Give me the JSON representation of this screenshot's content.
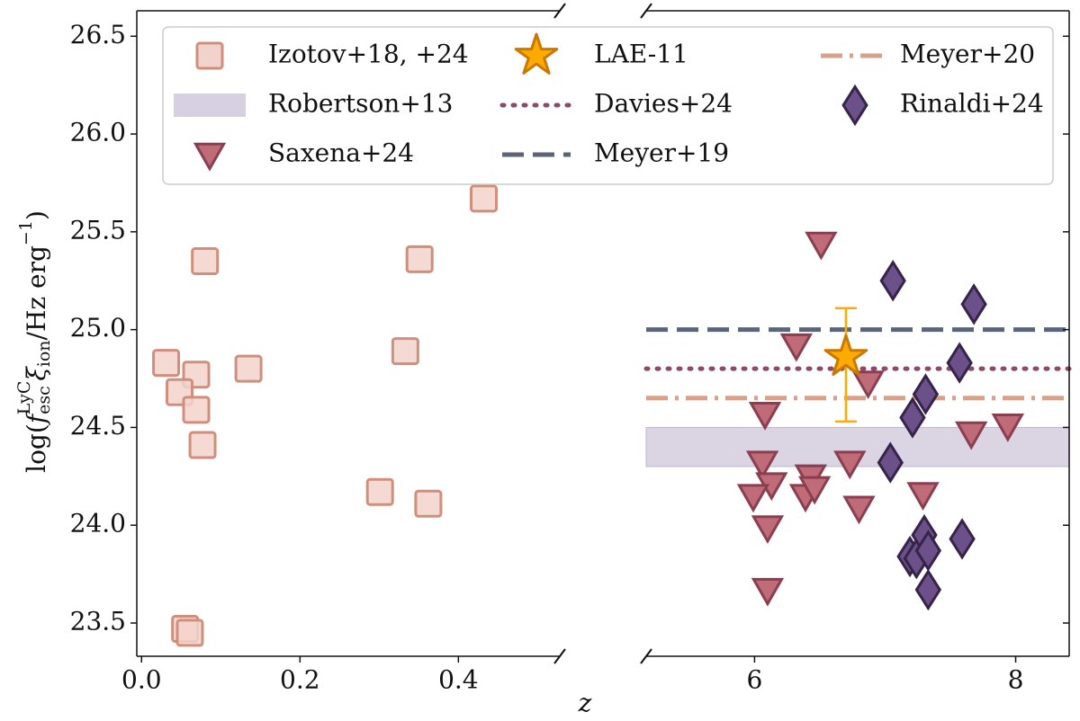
{
  "chart_data": [
    {
      "type": "scatter",
      "ylabel": [
        "log(",
        "f",
        "esc",
        "LyC",
        "ξ",
        "ion",
        "/Hz erg",
        "−1",
        ")"
      ],
      "xlabel": "z",
      "xlim": [
        -0.006,
        0.528
      ],
      "xticks": [
        {
          "value": 0,
          "label": "0.0"
        },
        0.2,
        0.4
      ],
      "ylim": [
        23.33,
        26.63
      ],
      "yticks": [
        23.5,
        {
          "value": 24,
          "label": "24.0"
        },
        24.5,
        {
          "value": 25,
          "label": "25.0"
        },
        25.5,
        {
          "value": 26,
          "label": "26.0"
        },
        26.5
      ],
      "series": [
        {
          "name": "Izotov+18, +24",
          "marker": "s",
          "color": "#f2d3cb",
          "edgecolor": "#d08f7c",
          "x": [
            0.031,
            0.08,
            0.069,
            0.048,
            0.069,
            0.077,
            0.135,
            0.333,
            0.351,
            0.432,
            0.301,
            0.362,
            0.055,
            0.061
          ],
          "values": [
            24.83,
            25.35,
            24.77,
            24.68,
            24.59,
            24.41,
            24.8,
            24.89,
            25.36,
            25.67,
            24.17,
            24.11,
            23.47,
            23.45
          ]
        }
      ]
    },
    {
      "type": "scatter",
      "xlim": [
        5.17,
        8.41
      ],
      "xticks": [
        6,
        8
      ],
      "ylim": [
        23.33,
        26.63
      ],
      "series": [
        {
          "name": "Saxena+24",
          "marker": "v",
          "color": "#c06b78",
          "edgecolor": "#8a3f50",
          "x": [
            6.51,
            6.32,
            6.87,
            6.08,
            6.06,
            6.13,
            5.99,
            6.43,
            6.39,
            6.46,
            6.73,
            6.8,
            6.1,
            6.1,
            7.29,
            7.66,
            7.94
          ],
          "values": [
            25.44,
            24.92,
            24.73,
            24.57,
            24.32,
            24.21,
            24.15,
            24.25,
            24.15,
            24.19,
            24.32,
            24.09,
            23.99,
            23.67,
            24.16,
            24.47,
            24.51
          ]
        },
        {
          "name": "Rinaldi+24",
          "marker": "D",
          "color": "#6b5089",
          "edgecolor": "#352448",
          "x": [
            7.06,
            7.68,
            7.57,
            7.31,
            7.21,
            7.04,
            7.19,
            7.24,
            7.3,
            7.33,
            7.59,
            7.33
          ],
          "values": [
            25.25,
            25.13,
            24.83,
            24.67,
            24.55,
            24.32,
            23.84,
            23.83,
            23.95,
            23.87,
            23.93,
            23.67
          ]
        },
        {
          "name": "LAE-11",
          "marker": "*",
          "color": "#ffaa00",
          "edgecolor": "#c97800",
          "x": [
            6.7
          ],
          "values": [
            24.86
          ],
          "yerr_low": [
            0.33
          ],
          "yerr_high": [
            0.25
          ]
        }
      ],
      "bands": [
        {
          "name": "Robertson+13",
          "color": "#d7d0e1",
          "ymin": 24.3,
          "ymax": 24.5
        }
      ],
      "hlines": [
        {
          "name": "Davies+24",
          "color": "#8c4a66",
          "linestyle": "dotted",
          "value": 24.8
        },
        {
          "name": "Meyer+19",
          "color": "#5b6479",
          "linestyle": "dashed",
          "value": 25.0
        },
        {
          "name": "Meyer+20",
          "color": "#d9a08b",
          "linestyle": "dashdot",
          "value": 24.65
        }
      ]
    }
  ]
}
